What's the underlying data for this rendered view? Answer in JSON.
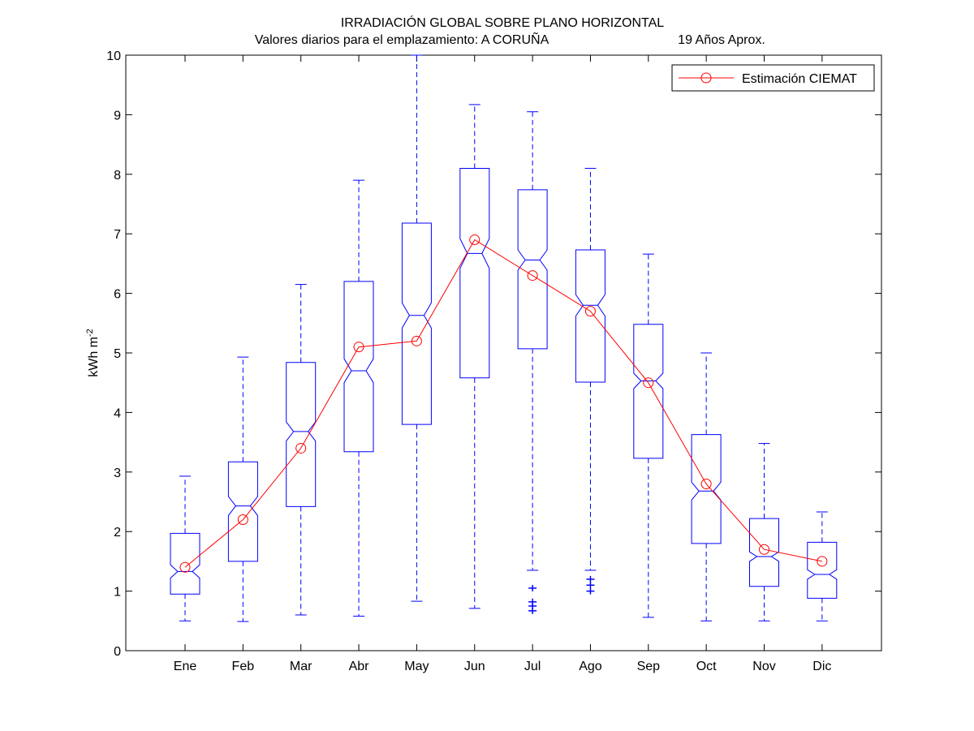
{
  "chart_data": {
    "type": "box",
    "title": "IRRADIACIÓN GLOBAL SOBRE PLANO HORIZONTAL",
    "subtitle_left": "Valores diarios para el emplazamiento:  A CORUÑA",
    "subtitle_right": "19 Años Aprox.",
    "ylabel": "kWh m",
    "ylabel_sup": "-2",
    "xlabel": "",
    "ylim": [
      0,
      10
    ],
    "yticks": [
      "0",
      "1",
      "2",
      "3",
      "4",
      "5",
      "6",
      "7",
      "8",
      "9",
      "10"
    ],
    "categories": [
      "Ene",
      "Feb",
      "Mar",
      "Abr",
      "May",
      "Jun",
      "Jul",
      "Ago",
      "Sep",
      "Oct",
      "Nov",
      "Dic"
    ],
    "box_series": [
      {
        "whisker_low": 0.5,
        "q1": 0.95,
        "median": 1.33,
        "notch_low": 1.22,
        "notch_high": 1.44,
        "q3": 1.97,
        "whisker_high": 2.93,
        "outliers": []
      },
      {
        "whisker_low": 0.49,
        "q1": 1.5,
        "median": 2.43,
        "notch_low": 2.27,
        "notch_high": 2.59,
        "q3": 3.17,
        "whisker_high": 4.93,
        "outliers": []
      },
      {
        "whisker_low": 0.6,
        "q1": 2.42,
        "median": 3.68,
        "notch_low": 3.52,
        "notch_high": 3.84,
        "q3": 4.84,
        "whisker_high": 6.15,
        "outliers": []
      },
      {
        "whisker_low": 0.58,
        "q1": 3.34,
        "median": 4.7,
        "notch_low": 4.5,
        "notch_high": 4.9,
        "q3": 6.2,
        "whisker_high": 7.9,
        "outliers": []
      },
      {
        "whisker_low": 0.83,
        "q1": 3.8,
        "median": 5.63,
        "notch_low": 5.42,
        "notch_high": 5.84,
        "q3": 7.18,
        "whisker_high": 10.0,
        "outliers": []
      },
      {
        "whisker_low": 0.71,
        "q1": 4.58,
        "median": 6.67,
        "notch_low": 6.42,
        "notch_high": 6.92,
        "q3": 8.1,
        "whisker_high": 9.17,
        "outliers": []
      },
      {
        "whisker_low": 1.35,
        "q1": 5.07,
        "median": 6.56,
        "notch_low": 6.39,
        "notch_high": 6.73,
        "q3": 7.74,
        "whisker_high": 9.05,
        "outliers": [
          1.05,
          0.82,
          0.75,
          0.67
        ]
      },
      {
        "whisker_low": 1.35,
        "q1": 4.51,
        "median": 5.8,
        "notch_low": 5.62,
        "notch_high": 5.98,
        "q3": 6.73,
        "whisker_high": 8.1,
        "outliers": [
          1.2,
          1.1,
          1.0
        ]
      },
      {
        "whisker_low": 0.56,
        "q1": 3.23,
        "median": 4.53,
        "notch_low": 4.4,
        "notch_high": 4.66,
        "q3": 5.48,
        "whisker_high": 6.66,
        "outliers": []
      },
      {
        "whisker_low": 0.5,
        "q1": 1.8,
        "median": 2.68,
        "notch_low": 2.53,
        "notch_high": 2.83,
        "q3": 3.63,
        "whisker_high": 5.0,
        "outliers": []
      },
      {
        "whisker_low": 0.5,
        "q1": 1.08,
        "median": 1.58,
        "notch_low": 1.5,
        "notch_high": 1.66,
        "q3": 2.22,
        "whisker_high": 3.48,
        "outliers": []
      },
      {
        "whisker_low": 0.5,
        "q1": 0.88,
        "median": 1.28,
        "notch_low": 1.2,
        "notch_high": 1.36,
        "q3": 1.82,
        "whisker_high": 2.33,
        "outliers": []
      }
    ],
    "line_series": {
      "name": "Estimación CIEMAT",
      "values": [
        1.4,
        2.2,
        3.4,
        5.1,
        5.2,
        6.9,
        6.3,
        5.7,
        4.5,
        2.8,
        1.7,
        1.5
      ]
    },
    "legend_position": "top-right",
    "grid": false,
    "colors": {
      "box": "#0000ff",
      "line": "#ff0000",
      "axis": "#000000",
      "background": "#ffffff"
    }
  }
}
